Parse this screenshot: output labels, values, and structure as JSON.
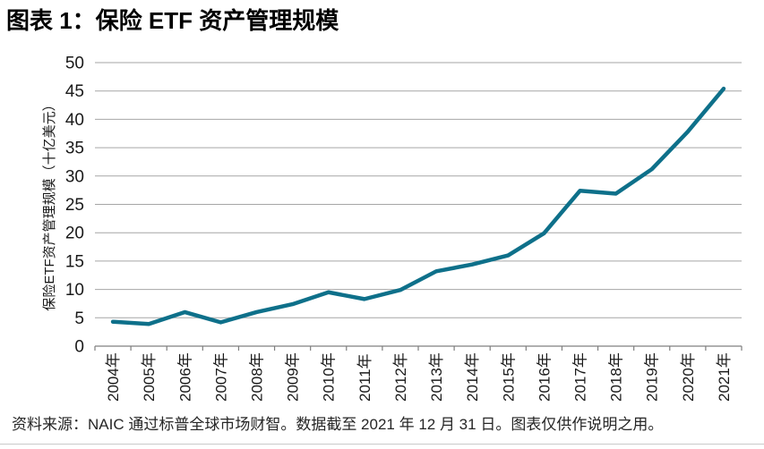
{
  "page": {
    "title": "图表 1：保险 ETF 资产管理规模",
    "source_note": "资料来源：NAIC 通过标普全球市场财智。数据截至 2021 年 12 月 31 日。图表仅供作说明之用。"
  },
  "chart_data": {
    "type": "line",
    "title": "图表 1：保险 ETF 资产管理规模",
    "xlabel": "",
    "ylabel": "保险ETF资产管理规模（十亿美元）",
    "categories": [
      "2004年",
      "2005年",
      "2006年",
      "2007年",
      "2008年",
      "2009年",
      "2010年",
      "2011年",
      "2012年",
      "2013年",
      "2014年",
      "2015年",
      "2016年",
      "2017年",
      "2018年",
      "2019年",
      "2020年",
      "2021年"
    ],
    "series": [
      {
        "name": "保险ETF资产管理规模",
        "values": [
          4.3,
          3.9,
          6.0,
          4.2,
          6.0,
          7.4,
          9.5,
          8.3,
          9.9,
          13.2,
          14.4,
          16.0,
          19.9,
          27.4,
          26.9,
          31.2,
          37.8,
          45.4
        ]
      }
    ],
    "ylim": [
      0,
      50
    ],
    "ytick_step": 5,
    "yticks": [
      "0",
      "5",
      "10",
      "15",
      "20",
      "25",
      "30",
      "35",
      "40",
      "45",
      "50"
    ],
    "grid": "horizontal",
    "legend_position": "none",
    "colors": {
      "line": "#0e708a",
      "gridline": "#a6a6a6",
      "axis": "#7f7f7f",
      "tick_label": "#1a1a1a",
      "axis_title": "#1a1a1a"
    }
  }
}
